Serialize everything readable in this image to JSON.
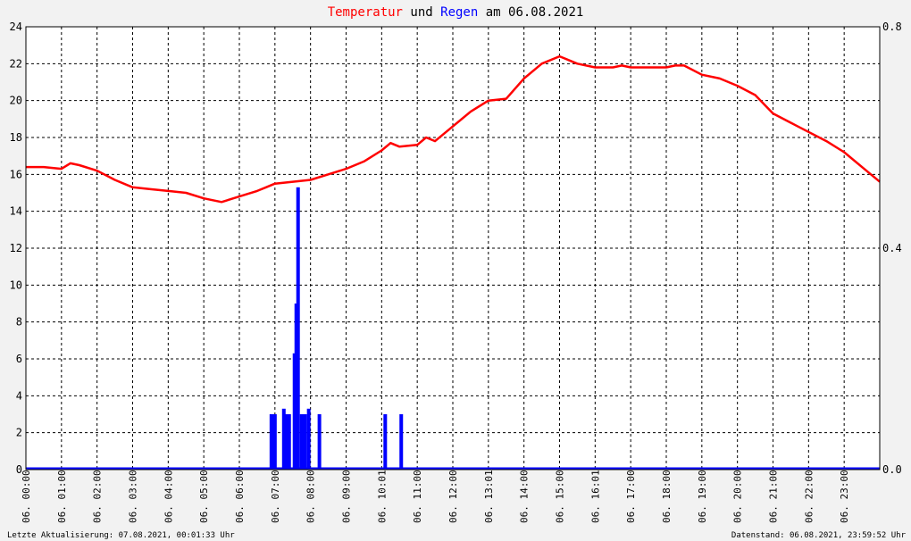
{
  "chart_data": {
    "type": "line",
    "title": {
      "part1": "Temperatur",
      "part2": " und ",
      "part3": "Regen",
      "part4": " am 06.08.2021"
    },
    "x": [
      0,
      0.5,
      1,
      1.25,
      1.5,
      2,
      2.5,
      3,
      3.5,
      4,
      4.5,
      5,
      5.5,
      6,
      6.5,
      6.75,
      7,
      7.5,
      8,
      8.5,
      9,
      9.5,
      10,
      10.25,
      10.5,
      11,
      11.25,
      11.5,
      12,
      12.5,
      13,
      13.5,
      14,
      14.5,
      15,
      15.5,
      16,
      16.5,
      16.75,
      17,
      17.5,
      18,
      18.25,
      18.5,
      19,
      19.5,
      20,
      20.5,
      21,
      21.5,
      22,
      22.5,
      23,
      23.5,
      24
    ],
    "x_tick_labels": [
      "06. 00:00",
      "06. 01:00",
      "06. 02:00",
      "06. 03:00",
      "06. 04:00",
      "06. 05:00",
      "06. 06:00",
      "06. 07:00",
      "06. 08:00",
      "06. 09:00",
      "06. 10:01",
      "06. 11:00",
      "06. 12:00",
      "06. 13:01",
      "06. 14:00",
      "06. 15:00",
      "06. 16:01",
      "06. 17:00",
      "06. 18:00",
      "06. 19:00",
      "06. 20:00",
      "06. 21:00",
      "06. 22:00",
      "06. 23:00"
    ],
    "xlim": [
      0,
      24
    ],
    "y_left_lim": [
      0,
      24
    ],
    "y_left_ticks": [
      0,
      2,
      4,
      6,
      8,
      10,
      12,
      14,
      16,
      18,
      20,
      22,
      24
    ],
    "y_right_lim": [
      0,
      0.8
    ],
    "y_right_ticks": [
      "0.0",
      "0.4",
      "0.8"
    ],
    "grid": true,
    "series": [
      {
        "name": "Temperatur",
        "axis": "left",
        "color": "#ff0000",
        "values": [
          16.4,
          16.4,
          16.3,
          16.6,
          16.5,
          16.2,
          15.7,
          15.3,
          15.2,
          15.1,
          15.0,
          14.7,
          14.5,
          14.8,
          15.1,
          15.3,
          15.5,
          15.6,
          15.7,
          16.0,
          16.3,
          16.7,
          17.3,
          17.7,
          17.5,
          17.6,
          18.0,
          17.8,
          18.6,
          19.4,
          20.0,
          20.1,
          21.2,
          22.0,
          22.4,
          22.0,
          21.8,
          21.8,
          21.9,
          21.8,
          21.8,
          21.8,
          21.9,
          21.9,
          21.4,
          21.2,
          20.8,
          20.3,
          19.3,
          18.8,
          18.3,
          17.8,
          17.2,
          16.4,
          15.6
        ]
      },
      {
        "name": "Regen",
        "axis": "right",
        "color": "#0000ff",
        "type": "bar",
        "bars": [
          [
            6.9,
            0.1
          ],
          [
            6.95,
            0.1
          ],
          [
            7.0,
            0.1
          ],
          [
            7.25,
            0.11
          ],
          [
            7.3,
            0.1
          ],
          [
            7.35,
            0.1
          ],
          [
            7.4,
            0.1
          ],
          [
            7.55,
            0.21
          ],
          [
            7.6,
            0.3
          ],
          [
            7.65,
            0.51
          ],
          [
            7.75,
            0.1
          ],
          [
            7.8,
            0.1
          ],
          [
            7.85,
            0.1
          ],
          [
            7.95,
            0.11
          ],
          [
            8.25,
            0.1
          ],
          [
            10.1,
            0.1
          ],
          [
            10.55,
            0.1
          ]
        ]
      }
    ]
  },
  "footer": {
    "left": "Letzte Aktualisierung: 07.08.2021, 00:01:33 Uhr",
    "right": "Datenstand: 06.08.2021, 23:59:52 Uhr"
  }
}
